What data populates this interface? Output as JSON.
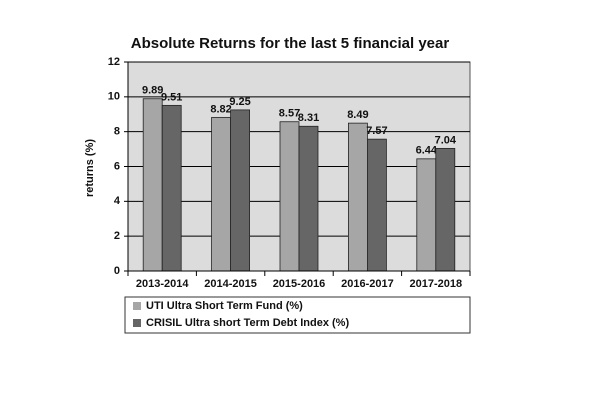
{
  "chart_data": {
    "type": "bar",
    "title": "Absolute Returns for the last 5 financial year",
    "y_label": "returns (%)",
    "categories": [
      "2013-2014",
      "2014-2015",
      "2015-2016",
      "2016-2017",
      "2017-2018"
    ],
    "series": [
      {
        "name": "UTI Ultra Short Term Fund (%)",
        "color": "#a6a6a6",
        "values": [
          9.89,
          8.82,
          8.57,
          8.49,
          6.44
        ]
      },
      {
        "name": "CRISIL Ultra short Term Debt Index (%)",
        "color": "#666666",
        "values": [
          9.51,
          9.25,
          8.31,
          7.57,
          7.04
        ]
      }
    ],
    "ylim": [
      0,
      12
    ],
    "yticks": [
      0,
      2,
      4,
      6,
      8,
      10,
      12
    ],
    "grid": true,
    "legend": "bottom"
  }
}
